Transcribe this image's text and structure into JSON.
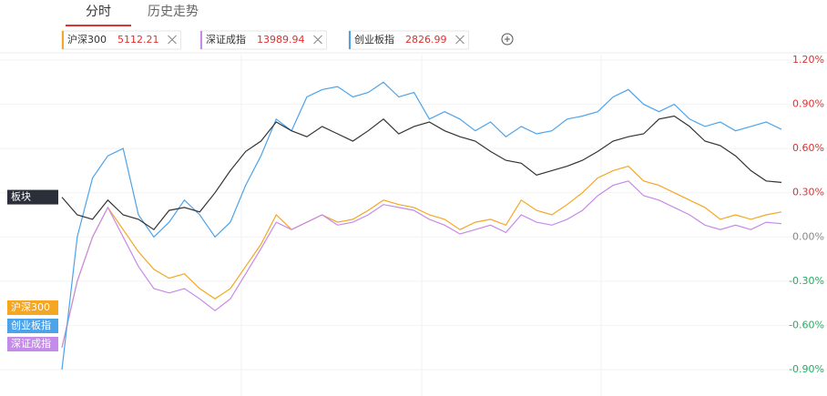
{
  "tabs": [
    "分时",
    "历史走势"
  ],
  "chart_data": {
    "type": "line",
    "series": [
      {
        "name": "板块",
        "color": "#333333",
        "values": [
          0.27,
          0.15,
          0.12,
          0.25,
          0.15,
          0.12,
          0.05,
          0.18,
          0.2,
          0.17,
          0.3,
          0.45,
          0.58,
          0.65,
          0.78,
          0.72,
          0.68,
          0.75,
          0.7,
          0.65,
          0.72,
          0.8,
          0.7,
          0.75,
          0.78,
          0.72,
          0.68,
          0.65,
          0.58,
          0.52,
          0.5,
          0.42,
          0.45,
          0.48,
          0.52,
          0.58,
          0.65,
          0.68,
          0.7,
          0.8,
          0.82,
          0.75,
          0.65,
          0.62,
          0.55,
          0.45,
          0.38,
          0.37
        ]
      },
      {
        "name": "沪深300",
        "color": "#f5a623",
        "quote": 5112.21,
        "values": [
          -0.75,
          -0.3,
          0.0,
          0.2,
          0.05,
          -0.1,
          -0.22,
          -0.28,
          -0.25,
          -0.35,
          -0.42,
          -0.35,
          -0.2,
          -0.05,
          0.15,
          0.05,
          0.1,
          0.15,
          0.1,
          0.12,
          0.18,
          0.25,
          0.22,
          0.2,
          0.15,
          0.12,
          0.05,
          0.1,
          0.12,
          0.08,
          0.25,
          0.18,
          0.15,
          0.22,
          0.3,
          0.4,
          0.45,
          0.48,
          0.38,
          0.35,
          0.3,
          0.25,
          0.2,
          0.12,
          0.15,
          0.12,
          0.15,
          0.17
        ]
      },
      {
        "name": "深证成指",
        "color": "#c58be8",
        "quote": 13989.94,
        "values": [
          -0.75,
          -0.3,
          0.0,
          0.2,
          0.0,
          -0.2,
          -0.35,
          -0.38,
          -0.35,
          -0.42,
          -0.5,
          -0.42,
          -0.25,
          -0.08,
          0.1,
          0.05,
          0.1,
          0.15,
          0.08,
          0.1,
          0.15,
          0.22,
          0.2,
          0.18,
          0.12,
          0.08,
          0.02,
          0.05,
          0.08,
          0.03,
          0.15,
          0.1,
          0.08,
          0.12,
          0.18,
          0.28,
          0.35,
          0.38,
          0.28,
          0.25,
          0.2,
          0.15,
          0.08,
          0.05,
          0.08,
          0.05,
          0.1,
          0.09
        ]
      },
      {
        "name": "创业板指",
        "color": "#4da3ea",
        "quote": 2826.99,
        "values": [
          -0.9,
          0.0,
          0.4,
          0.55,
          0.6,
          0.15,
          0.0,
          0.1,
          0.25,
          0.15,
          0.0,
          0.1,
          0.35,
          0.55,
          0.8,
          0.72,
          0.95,
          1.0,
          1.02,
          0.95,
          0.98,
          1.05,
          0.95,
          0.98,
          0.8,
          0.85,
          0.8,
          0.72,
          0.78,
          0.68,
          0.75,
          0.7,
          0.72,
          0.8,
          0.82,
          0.85,
          0.95,
          1.0,
          0.9,
          0.85,
          0.9,
          0.8,
          0.75,
          0.78,
          0.72,
          0.75,
          0.78,
          0.73
        ]
      }
    ],
    "ylim": [
      -0.9,
      1.2
    ],
    "yticks": [
      {
        "value": 1.2,
        "label": "1.20%"
      },
      {
        "value": 0.9,
        "label": "0.90%"
      },
      {
        "value": 0.6,
        "label": "0.60%"
      },
      {
        "value": 0.3,
        "label": "0.30%"
      },
      {
        "value": 0,
        "label": "0.00%"
      },
      {
        "value": -0.3,
        "label": "-0.30%"
      },
      {
        "value": -0.6,
        "label": "-0.60%"
      },
      {
        "value": -0.9,
        "label": "-0.90%"
      }
    ],
    "grid": true
  }
}
